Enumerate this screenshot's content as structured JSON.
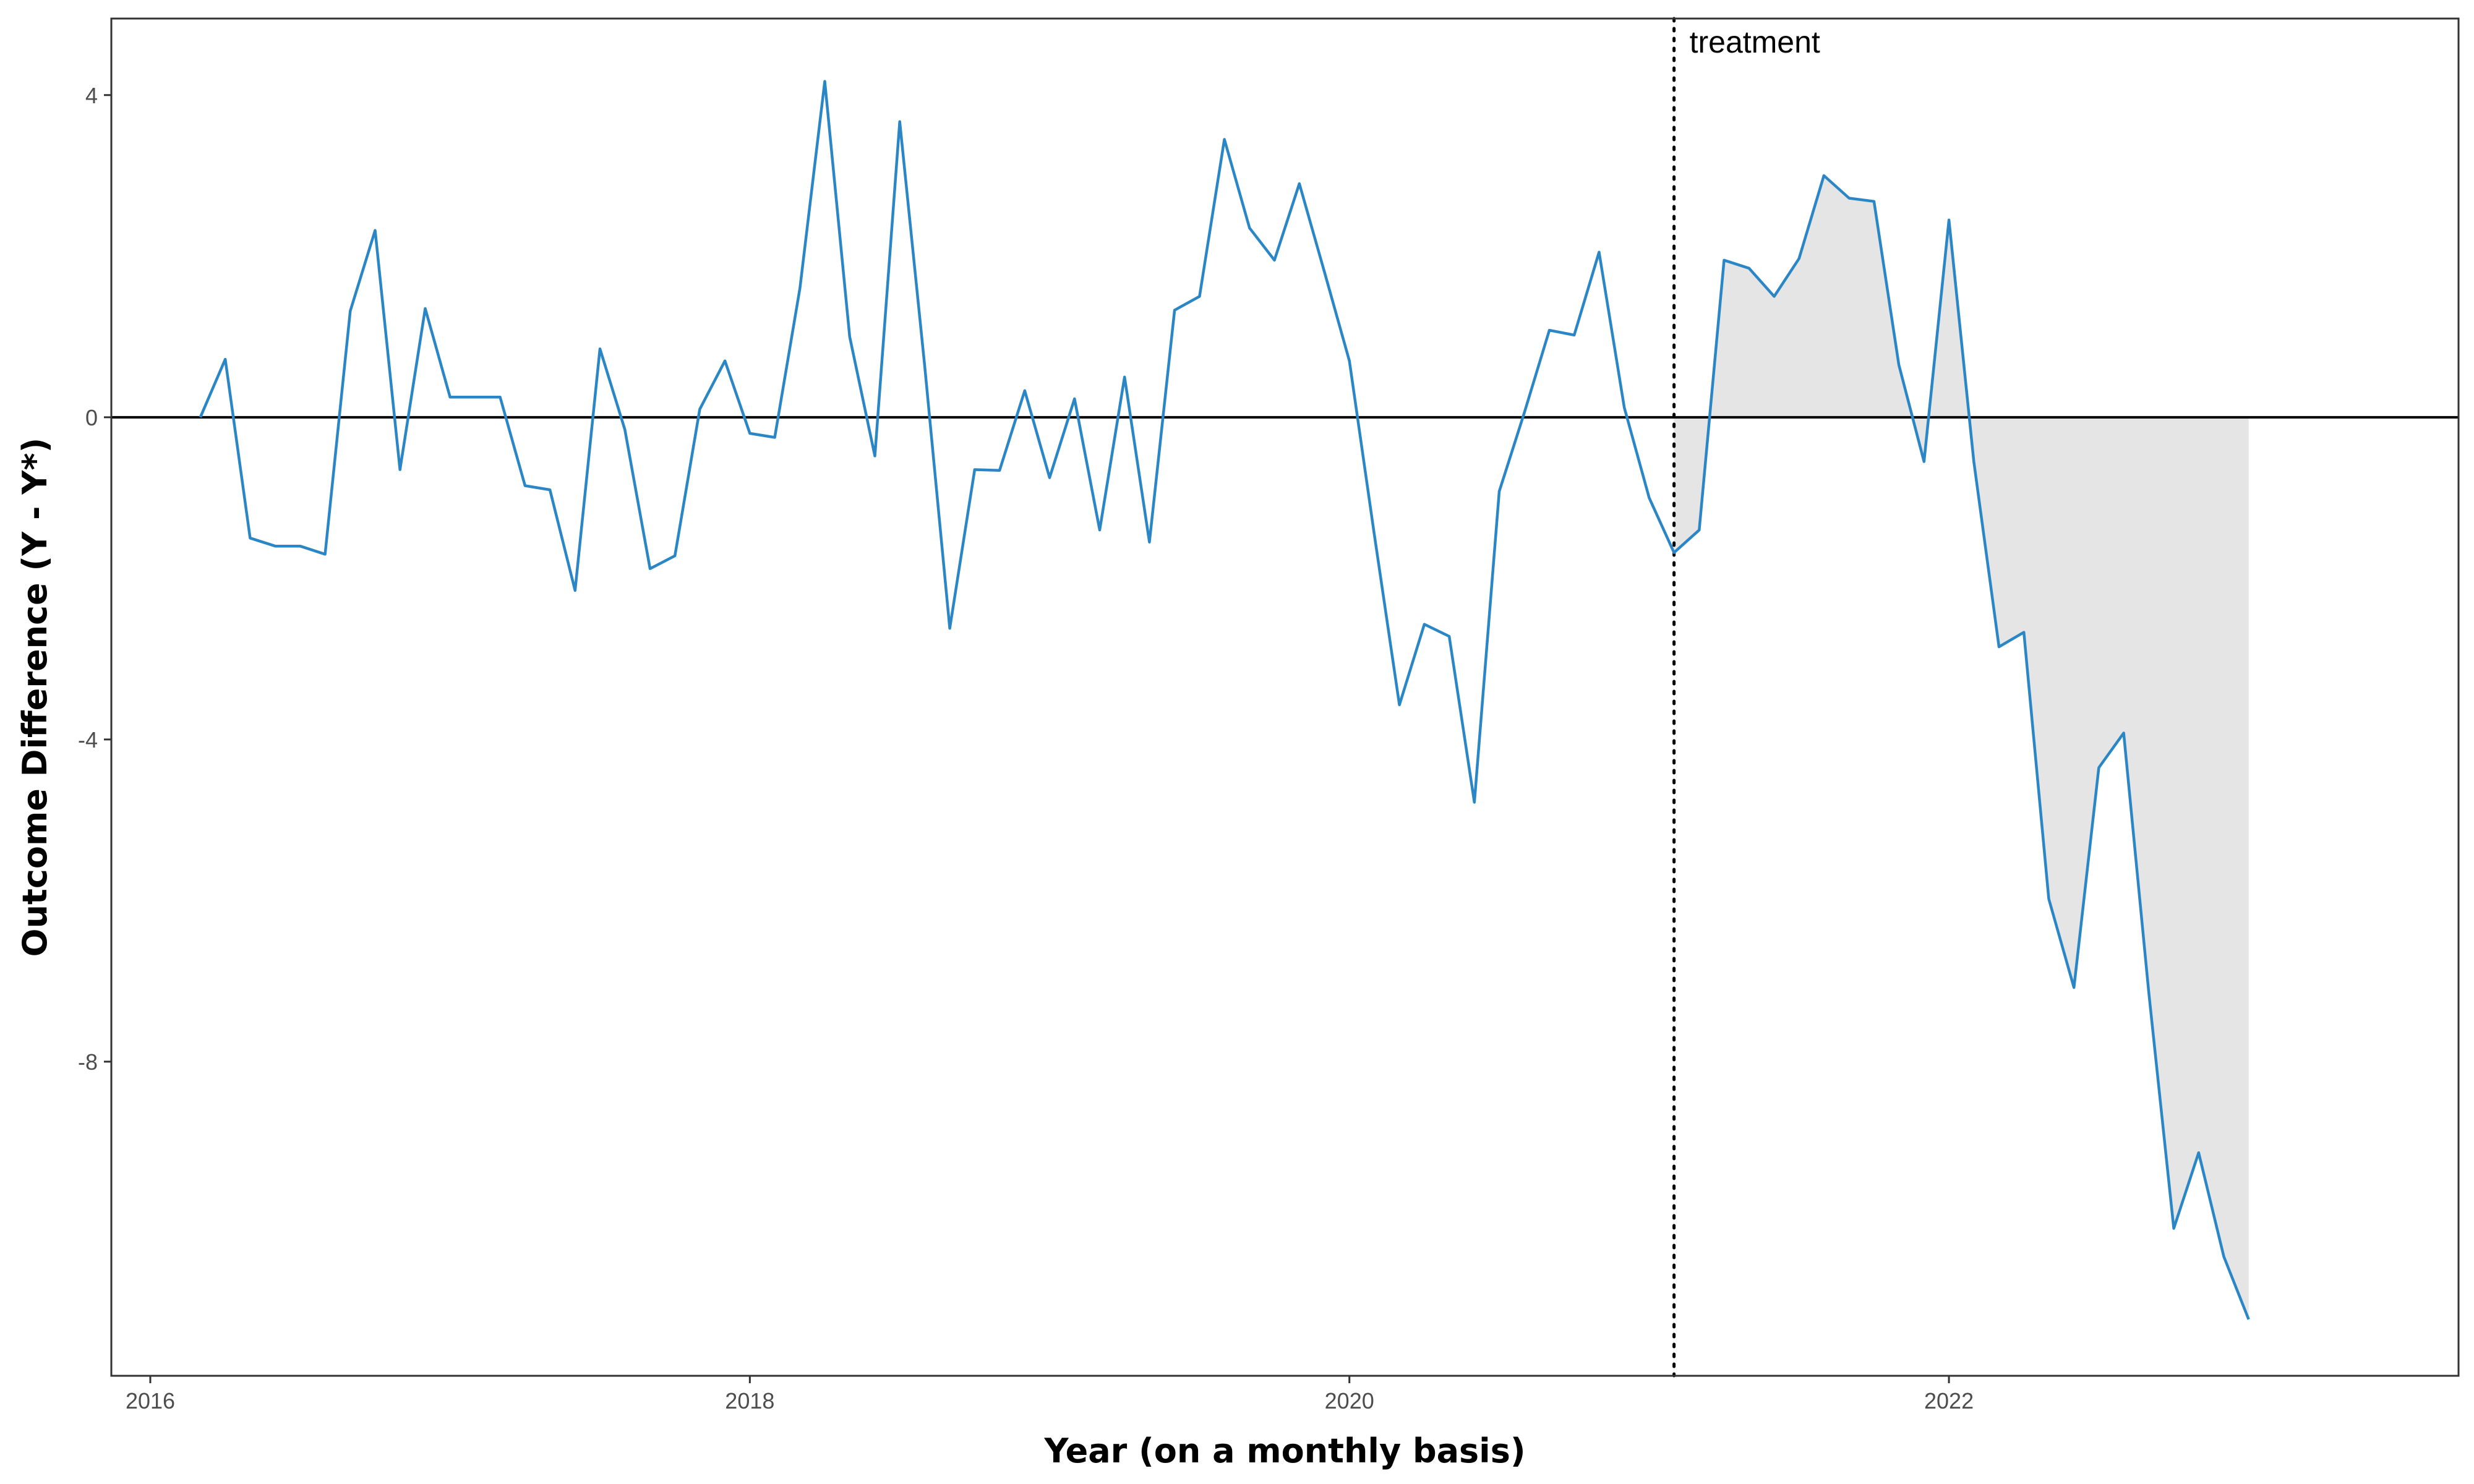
{
  "chart_data": {
    "type": "line",
    "title": "",
    "xlabel": "Year (on a monthly basis)",
    "ylabel": "Outcome Difference (Y - Y*)",
    "xlim": [
      2015.87,
      2023.7
    ],
    "ylim": [
      -11.9,
      4.95
    ],
    "x_ticks": [
      2016,
      2018,
      2020,
      2022
    ],
    "x_tick_labels": [
      "2016",
      "2018",
      "2020",
      "2022"
    ],
    "y_ticks": [
      4,
      0,
      -4,
      -8
    ],
    "y_tick_labels": [
      "4",
      "0",
      "-4",
      "-8"
    ],
    "grid": false,
    "legend": "none",
    "reference_line_y": 0,
    "treatment_x": 2021.083,
    "annotation": "treatment",
    "colors": {
      "series": "#2b86c6",
      "shade": "#e5e5e5",
      "zero_line": "#000000",
      "panel_border": "#333333"
    },
    "x": [
      2016.167,
      2016.25,
      2016.333,
      2016.417,
      2016.5,
      2016.583,
      2016.667,
      2016.75,
      2016.833,
      2016.917,
      2017.0,
      2017.083,
      2017.167,
      2017.25,
      2017.333,
      2017.417,
      2017.5,
      2017.583,
      2017.667,
      2017.75,
      2017.833,
      2017.917,
      2018.0,
      2018.083,
      2018.167,
      2018.25,
      2018.333,
      2018.417,
      2018.5,
      2018.583,
      2018.667,
      2018.75,
      2018.833,
      2018.917,
      2019.0,
      2019.083,
      2019.167,
      2019.25,
      2019.333,
      2019.417,
      2019.5,
      2019.583,
      2019.667,
      2019.75,
      2019.833,
      2019.917,
      2020.0,
      2020.083,
      2020.167,
      2020.25,
      2020.333,
      2020.417,
      2020.5,
      2020.583,
      2020.667,
      2020.75,
      2020.833,
      2020.917,
      2021.0,
      2021.083,
      2021.167,
      2021.25,
      2021.333,
      2021.417,
      2021.5,
      2021.583,
      2021.667,
      2021.75,
      2021.833,
      2021.917,
      2022.0,
      2022.083,
      2022.167,
      2022.25,
      2022.333,
      2022.417,
      2022.5,
      2022.583,
      2022.667,
      2022.75,
      2022.833,
      2022.917,
      2023.0
    ],
    "y": [
      0.0,
      0.72,
      -1.5,
      -1.6,
      -1.6,
      -1.7,
      1.32,
      2.32,
      -0.65,
      1.35,
      0.25,
      0.25,
      0.25,
      -0.85,
      -0.9,
      -2.15,
      0.85,
      -0.15,
      -1.88,
      -1.72,
      0.1,
      0.7,
      -0.2,
      -0.25,
      1.6,
      4.17,
      1.0,
      -0.48,
      3.67,
      0.65,
      -2.62,
      -0.65,
      -0.66,
      0.33,
      -0.75,
      0.23,
      -1.4,
      0.5,
      -1.55,
      1.33,
      1.5,
      3.45,
      2.35,
      1.95,
      2.9,
      1.8,
      0.7,
      -1.45,
      -3.57,
      -2.57,
      -2.72,
      -4.78,
      -0.92,
      0.05,
      1.08,
      1.02,
      2.05,
      0.12,
      -1.0,
      -1.68,
      -1.4,
      1.95,
      1.85,
      1.5,
      1.97,
      3.0,
      2.72,
      2.68,
      0.65,
      -0.55,
      2.45,
      -0.55,
      -2.85,
      -2.67,
      -5.98,
      -7.08,
      -4.35,
      -3.92,
      -7.15,
      -10.07,
      -9.13,
      -10.42,
      -11.2
    ]
  }
}
